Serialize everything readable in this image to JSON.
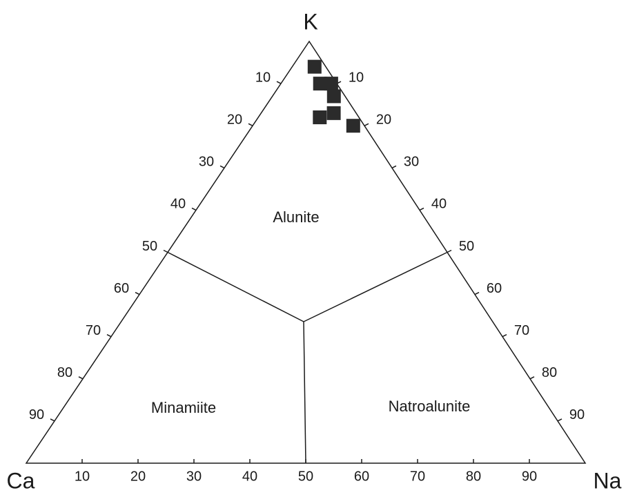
{
  "chart_data": {
    "type": "ternary",
    "corners": [
      "K",
      "Ca",
      "Na"
    ],
    "ticks": [
      10,
      20,
      30,
      40,
      50,
      60,
      70,
      80,
      90
    ],
    "regions": [
      "Alunite",
      "Minamiite",
      "Natroalunite"
    ],
    "k_values": [
      94,
      90,
      90,
      87,
      82,
      83,
      80
    ],
    "ca_values": [
      2,
      3,
      1,
      2,
      7,
      4,
      2
    ],
    "na_values": [
      4,
      7,
      9,
      11,
      11,
      13,
      18
    ],
    "color": "#2b2b2b"
  }
}
